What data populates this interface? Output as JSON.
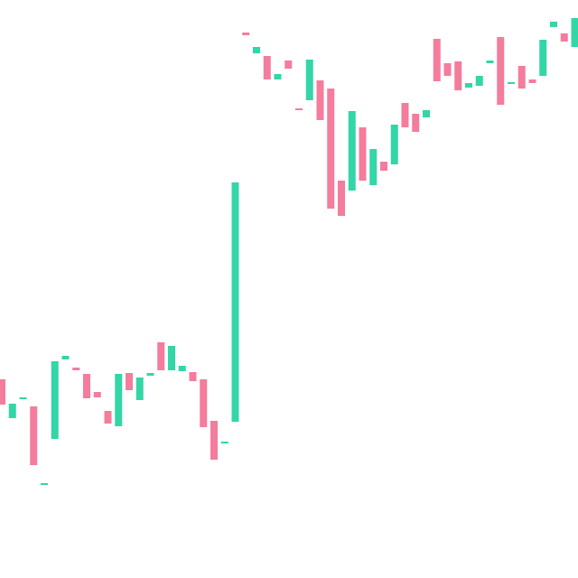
{
  "chart_data": {
    "type": "candlestick",
    "open": [
      220,
      177,
      199,
      190,
      104,
      154,
      242,
      233,
      226,
      206,
      185,
      168,
      227,
      197,
      224,
      261,
      230,
      229,
      228,
      220,
      174,
      149,
      173,
      604,
      581,
      578,
      552,
      573,
      520,
      529,
      551,
      542,
      440,
      429,
      499,
      435,
      461,
      458,
      526,
      514,
      510,
      597,
      570,
      572,
      543,
      545,
      570,
      599,
      547,
      567,
      552,
      556,
      610,
      603,
      588
    ],
    "close": [
      192,
      193,
      200,
      125,
      105,
      240,
      246,
      230,
      199,
      200,
      171,
      226,
      208,
      222,
      227,
      230,
      257,
      235,
      218,
      167,
      131,
      151,
      438,
      601,
      588,
      552,
      558,
      564,
      518,
      574,
      507,
      409,
      401,
      517,
      440,
      475,
      451,
      502,
      499,
      494,
      518,
      550,
      556,
      540,
      548,
      556,
      573,
      524,
      549,
      542,
      548,
      596,
      616,
      594,
      620
    ],
    "up_color": "#33d6a6",
    "down_color": "#f47c9c",
    "ylim": [
      0,
      640
    ]
  }
}
